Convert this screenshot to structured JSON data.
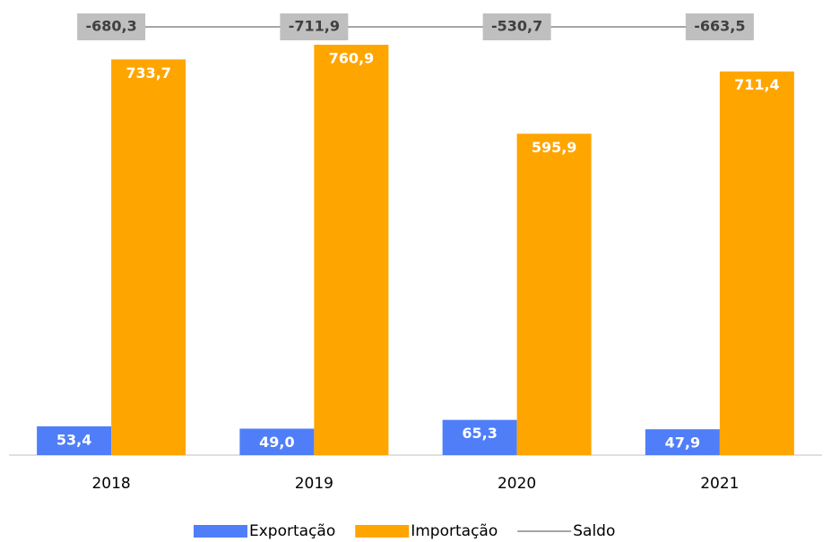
{
  "chart_data": {
    "type": "bar",
    "categories": [
      "2018",
      "2019",
      "2020",
      "2021"
    ],
    "series": [
      {
        "name": "Exportação",
        "color": "#4f7ef8",
        "values": [
          53.4,
          49.0,
          65.3,
          47.9
        ],
        "value_labels": [
          "53,4",
          "49,0",
          "65,3",
          "47,9"
        ]
      },
      {
        "name": "Importação",
        "color": "#ffa500",
        "values": [
          733.7,
          760.9,
          595.9,
          711.4
        ],
        "value_labels": [
          "733,7",
          "760,9",
          "595,9",
          "711,4"
        ]
      },
      {
        "name": "Saldo",
        "type": "line",
        "color": "#a6a6a6",
        "label_box_color": "#bfbfbf",
        "values": [
          -680.3,
          -711.9,
          -530.7,
          -663.5
        ],
        "value_labels": [
          "-680,3",
          "-711,9",
          "-530,7",
          "-663,5"
        ]
      }
    ],
    "ylim": [
      0,
      800
    ]
  }
}
